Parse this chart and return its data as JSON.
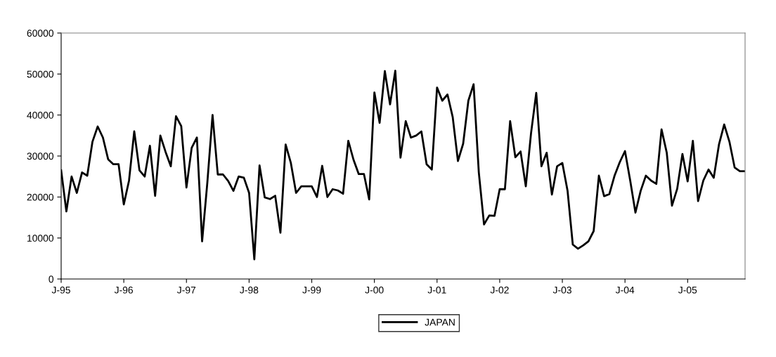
{
  "chart_data": {
    "type": "line",
    "x": [
      "1995-01",
      "1995-02",
      "1995-03",
      "1995-04",
      "1995-05",
      "1995-06",
      "1995-07",
      "1995-08",
      "1995-09",
      "1995-10",
      "1995-11",
      "1995-12",
      "1996-01",
      "1996-02",
      "1996-03",
      "1996-04",
      "1996-05",
      "1996-06",
      "1996-07",
      "1996-08",
      "1996-09",
      "1996-10",
      "1996-11",
      "1996-12",
      "1997-01",
      "1997-02",
      "1997-03",
      "1997-04",
      "1997-05",
      "1997-06",
      "1997-07",
      "1997-08",
      "1997-09",
      "1997-10",
      "1997-11",
      "1997-12",
      "1998-01",
      "1998-02",
      "1998-03",
      "1998-04",
      "1998-05",
      "1998-06",
      "1998-07",
      "1998-08",
      "1998-09",
      "1998-10",
      "1998-11",
      "1998-12",
      "1999-01",
      "1999-02",
      "1999-03",
      "1999-04",
      "1999-05",
      "1999-06",
      "1999-07",
      "1999-08",
      "1999-09",
      "1999-10",
      "1999-11",
      "1999-12",
      "2000-01",
      "2000-02",
      "2000-03",
      "2000-04",
      "2000-05",
      "2000-06",
      "2000-07",
      "2000-08",
      "2000-09",
      "2000-10",
      "2000-11",
      "2000-12",
      "2001-01",
      "2001-02",
      "2001-03",
      "2001-04",
      "2001-05",
      "2001-06",
      "2001-07",
      "2001-08",
      "2001-09",
      "2001-10",
      "2001-11",
      "2001-12",
      "2002-01",
      "2002-02",
      "2002-03",
      "2002-04",
      "2002-05",
      "2002-06",
      "2002-07",
      "2002-08",
      "2002-09",
      "2002-10",
      "2002-11",
      "2002-12",
      "2003-01",
      "2003-02",
      "2003-03",
      "2003-04",
      "2003-05",
      "2003-06",
      "2003-07",
      "2003-08",
      "2003-09",
      "2003-10",
      "2003-11",
      "2003-12",
      "2004-01",
      "2004-02",
      "2004-03",
      "2004-04",
      "2004-05",
      "2004-06",
      "2004-07",
      "2004-08",
      "2004-09",
      "2004-10",
      "2004-11",
      "2004-12",
      "2005-01",
      "2005-02",
      "2005-03",
      "2005-04",
      "2005-05",
      "2005-06",
      "2005-07",
      "2005-08",
      "2005-09",
      "2005-10",
      "2005-11",
      "2005-12"
    ],
    "series": [
      {
        "name": "JAPAN",
        "color": "#000000",
        "values": [
          26500,
          16500,
          25000,
          21000,
          26000,
          25200,
          33500,
          37200,
          34500,
          29200,
          28000,
          28000,
          18200,
          24000,
          36000,
          26500,
          25000,
          32500,
          20300,
          35000,
          31000,
          27500,
          39700,
          37300,
          22300,
          32000,
          34500,
          9200,
          23500,
          40000,
          25500,
          25500,
          23900,
          21500,
          25000,
          24700,
          21000,
          4800,
          27700,
          19900,
          19500,
          20300,
          11300,
          32800,
          28300,
          21000,
          22600,
          22600,
          22600,
          20000,
          27600,
          20000,
          21900,
          21600,
          20800,
          33700,
          29100,
          25600,
          25600,
          19400,
          45500,
          38100,
          50700,
          42600,
          50800,
          29600,
          38500,
          34500,
          35000,
          36000,
          28000,
          26700,
          46700,
          43500,
          45000,
          39500,
          28800,
          33000,
          43500,
          47500,
          26000,
          13300,
          15500,
          15400,
          21900,
          21900,
          38500,
          29700,
          31100,
          22600,
          35500,
          45400,
          27500,
          30800,
          20600,
          27500,
          28300,
          21500,
          8400,
          7400,
          8200,
          9200,
          11700,
          25200,
          20200,
          20700,
          25200,
          28500,
          31200,
          24000,
          16200,
          21500,
          25200,
          24000,
          23200,
          36500,
          30800,
          17900,
          22000,
          30500,
          23800,
          33700,
          19000,
          24000,
          26700,
          24700,
          32800,
          37700,
          33500,
          27200,
          26300,
          26300
        ]
      }
    ],
    "xlim": [
      "1995-01",
      "2005-12"
    ],
    "xticks": [
      {
        "value": "1995-01",
        "label": "J-95"
      },
      {
        "value": "1996-01",
        "label": "J-96"
      },
      {
        "value": "1997-01",
        "label": "J-97"
      },
      {
        "value": "1998-01",
        "label": "J-98"
      },
      {
        "value": "1999-01",
        "label": "J-99"
      },
      {
        "value": "2000-01",
        "label": "J-00"
      },
      {
        "value": "2001-01",
        "label": "J-01"
      },
      {
        "value": "2002-01",
        "label": "J-02"
      },
      {
        "value": "2003-01",
        "label": "J-03"
      },
      {
        "value": "2004-01",
        "label": "J-04"
      },
      {
        "value": "2005-01",
        "label": "J-05"
      }
    ],
    "ylim": [
      0,
      60000
    ],
    "yticks": [
      0,
      10000,
      20000,
      30000,
      40000,
      50000,
      60000
    ],
    "grid": false,
    "legend": "bottom",
    "marker": "none",
    "line_style": "solid"
  }
}
